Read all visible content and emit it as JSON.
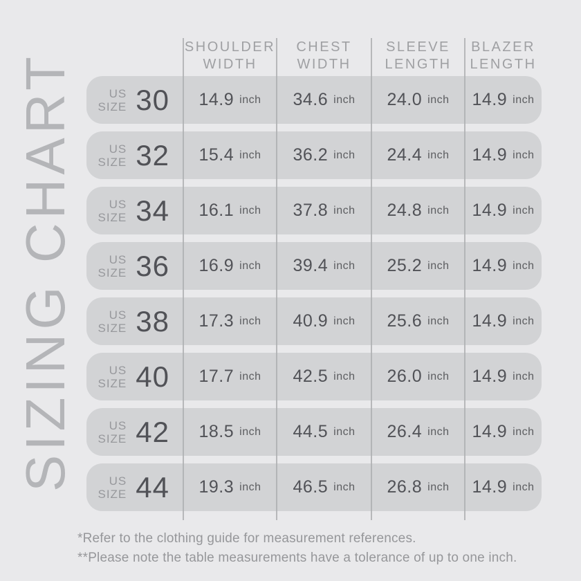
{
  "page": {
    "vertical_title": "SIZING CHART",
    "background_color": "#e9e9eb",
    "row_pill_color": "#d2d3d5",
    "dark_text_color": "#515257",
    "muted_text_color": "#97989c"
  },
  "table": {
    "size_label_line1": "US",
    "size_label_line2": "SIZE",
    "unit": "inch",
    "columns": [
      {
        "line1": "SHOULDER",
        "line2": "WIDTH"
      },
      {
        "line1": "CHEST",
        "line2": "WIDTH"
      },
      {
        "line1": "SLEEVE",
        "line2": "LENGTH"
      },
      {
        "line1": "BLAZER",
        "line2": "LENGTH"
      }
    ],
    "rows": [
      {
        "size": "30",
        "shoulder_width": "14.9",
        "chest_width": "34.6",
        "sleeve_length": "24.0",
        "blazer_length": "14.9"
      },
      {
        "size": "32",
        "shoulder_width": "15.4",
        "chest_width": "36.2",
        "sleeve_length": "24.4",
        "blazer_length": "14.9"
      },
      {
        "size": "34",
        "shoulder_width": "16.1",
        "chest_width": "37.8",
        "sleeve_length": "24.8",
        "blazer_length": "14.9"
      },
      {
        "size": "36",
        "shoulder_width": "16.9",
        "chest_width": "39.4",
        "sleeve_length": "25.2",
        "blazer_length": "14.9"
      },
      {
        "size": "38",
        "shoulder_width": "17.3",
        "chest_width": "40.9",
        "sleeve_length": "25.6",
        "blazer_length": "14.9"
      },
      {
        "size": "40",
        "shoulder_width": "17.7",
        "chest_width": "42.5",
        "sleeve_length": "26.0",
        "blazer_length": "14.9"
      },
      {
        "size": "42",
        "shoulder_width": "18.5",
        "chest_width": "44.5",
        "sleeve_length": "26.4",
        "blazer_length": "14.9"
      },
      {
        "size": "44",
        "shoulder_width": "19.3",
        "chest_width": "46.5",
        "sleeve_length": "26.8",
        "blazer_length": "14.9"
      }
    ]
  },
  "footnotes": {
    "line1": "*Refer to the clothing guide for measurement references.",
    "line2": "**Please note the table measurements have a tolerance of up to one inch."
  },
  "chart_data": {
    "type": "table",
    "title": "SIZING CHART",
    "columns": [
      "US SIZE",
      "SHOULDER WIDTH (inch)",
      "CHEST WIDTH (inch)",
      "SLEEVE LENGTH (inch)",
      "BLAZER LENGTH (inch)"
    ],
    "rows": [
      [
        30,
        14.9,
        34.6,
        24.0,
        14.9
      ],
      [
        32,
        15.4,
        36.2,
        24.4,
        14.9
      ],
      [
        34,
        16.1,
        37.8,
        24.8,
        14.9
      ],
      [
        36,
        16.9,
        39.4,
        25.2,
        14.9
      ],
      [
        38,
        17.3,
        40.9,
        25.6,
        14.9
      ],
      [
        40,
        17.7,
        42.5,
        26.0,
        14.9
      ],
      [
        42,
        18.5,
        44.5,
        26.4,
        14.9
      ],
      [
        44,
        19.3,
        46.5,
        26.8,
        14.9
      ]
    ],
    "notes": [
      "*Refer to the clothing guide for measurement references.",
      "**Please note the table measurements have a tolerance of up to one inch."
    ]
  }
}
